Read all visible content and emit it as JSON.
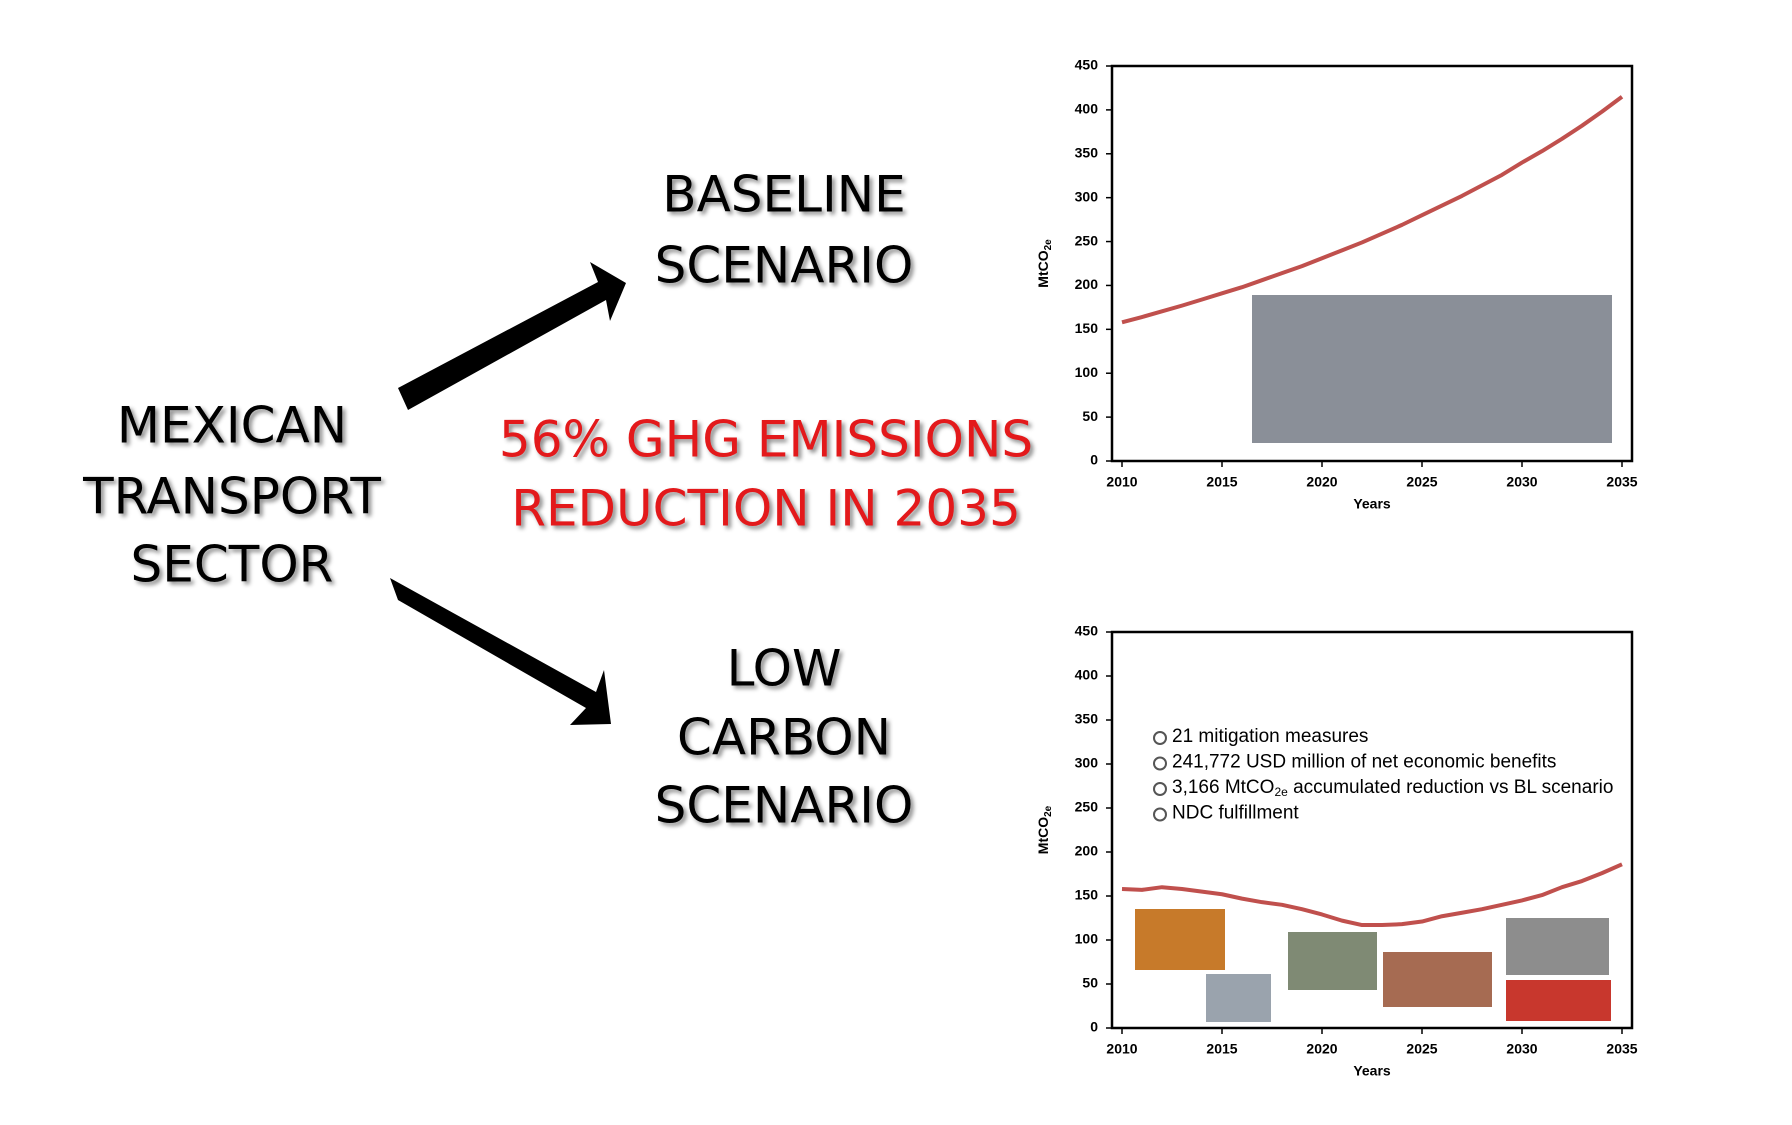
{
  "labels": {
    "sector": [
      "MEXICAN",
      "TRANSPORT",
      "SECTOR"
    ],
    "baseline": [
      "BASELINE",
      "SCENARIO"
    ],
    "low_carbon": [
      "LOW",
      "CARBON",
      "SCENARIO"
    ],
    "reduction": [
      "56% GHG EMISSIONS",
      "REDUCTION IN 2035"
    ]
  },
  "chart_data": [
    {
      "type": "line",
      "xlabel": "Years",
      "ylabel": [
        "MtCO",
        "2e"
      ],
      "x": [
        2010,
        2011,
        2012,
        2013,
        2014,
        2015,
        2016,
        2017,
        2018,
        2019,
        2020,
        2021,
        2022,
        2023,
        2024,
        2025,
        2026,
        2027,
        2028,
        2029,
        2030,
        2031,
        2032,
        2033,
        2034,
        2035
      ],
      "series": [
        {
          "color": "#c0504d",
          "values": [
            158,
            164,
            170.5,
            177,
            184,
            191,
            198,
            206,
            214,
            222,
            231,
            240,
            249,
            259,
            269,
            280,
            291,
            302,
            314,
            326,
            340,
            353,
            367,
            382,
            398,
            415
          ]
        }
      ],
      "xlim": [
        2009.5,
        2035.5
      ],
      "xticks": [
        2010,
        2015,
        2020,
        2025,
        2030,
        2035
      ],
      "ylim": [
        0,
        450
      ],
      "yticks": [
        0,
        50,
        100,
        150,
        200,
        250,
        300,
        350,
        400,
        450
      ]
    },
    {
      "type": "line",
      "xlabel": "Years",
      "ylabel": [
        "MtCO",
        "2e"
      ],
      "x": [
        2010,
        2011,
        2012,
        2013,
        2014,
        2015,
        2016,
        2017,
        2018,
        2019,
        2020,
        2021,
        2022,
        2023,
        2024,
        2025,
        2026,
        2027,
        2028,
        2029,
        2030,
        2031,
        2032,
        2033,
        2034,
        2035
      ],
      "series": [
        {
          "color": "#c0504d",
          "values": [
            158,
            157,
            160,
            158,
            155,
            152,
            147,
            143,
            140,
            135,
            129,
            122,
            117,
            117,
            118,
            121,
            127,
            131,
            135,
            140,
            145,
            151,
            160,
            167,
            176,
            186
          ]
        }
      ],
      "xlim": [
        2009.5,
        2035.5
      ],
      "xticks": [
        2010,
        2015,
        2020,
        2025,
        2030,
        2035
      ],
      "ylim": [
        0,
        450
      ],
      "yticks": [
        0,
        50,
        100,
        150,
        200,
        250,
        300,
        350,
        400,
        450
      ],
      "annotations": [
        [
          "21 mitigation measures"
        ],
        [
          "241,772 USD million of net economic benefits"
        ],
        [
          "3,166 MtCO",
          "2e",
          " accumulated reduction vs BL scenario"
        ],
        [
          "NDC fulfillment"
        ]
      ]
    }
  ]
}
